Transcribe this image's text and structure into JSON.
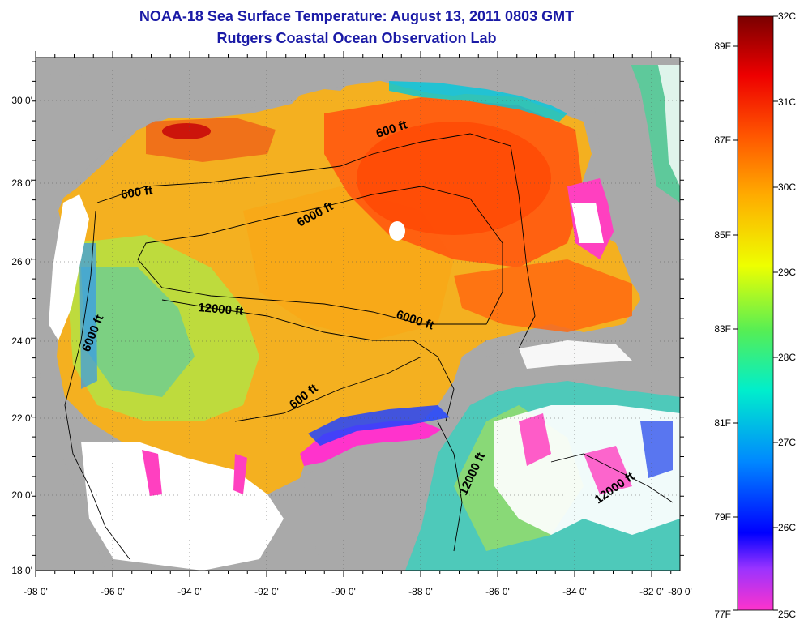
{
  "title": "NOAA-18 Sea Surface Temperature:  August 13, 2011 0803 GMT",
  "subtitle": "Rutgers Coastal Ocean Observation Lab",
  "lat_labels": [
    "30 0'",
    "28 0'",
    "26 0'",
    "24 0'",
    "22 0'",
    "20 0'",
    "18 0'"
  ],
  "lon_labels": [
    "-98 0'",
    "-96 0'",
    "-94 0'",
    "-92 0'",
    "-90 0'",
    "-88 0'",
    "-86 0'",
    "-84 0'",
    "-82 0'",
    "-80 0'"
  ],
  "contour_labels": {
    "c600_ne": "600 ft",
    "c600_w": "600 ft",
    "c6000_n": "6000 ft",
    "c6000_w": "6000 ft",
    "c6000_e": "6000 ft",
    "c12000_c": "12000 ft",
    "c600_s": "600 ft",
    "c12000_yuc": "12000 ft",
    "c12000_se": "12000 ft"
  },
  "colorbar": {
    "celsius": [
      "32C",
      "31C",
      "30C",
      "29C",
      "28C",
      "27C",
      "26C",
      "25C"
    ],
    "fahrenheit": [
      "89F",
      "87F",
      "85F",
      "83F",
      "81F",
      "79F",
      "77F"
    ]
  },
  "colors": {
    "land": "#a9a9a9",
    "cloud": "#ffffff",
    "title": "#1a1aa6",
    "warm": "#ff4000",
    "cold": "#ff40c0"
  }
}
